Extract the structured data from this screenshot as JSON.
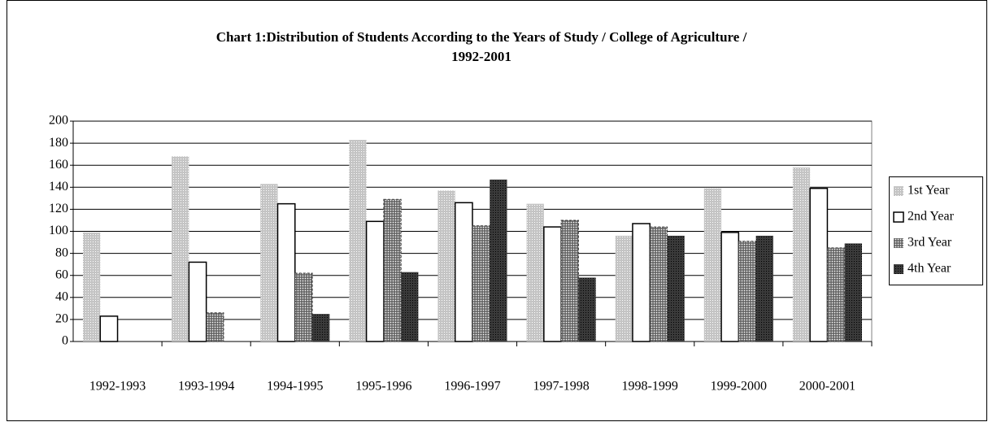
{
  "chart_data": {
    "type": "bar",
    "title": [
      "Chart 1:Distribution of Students According to the Years  of Study / College of Agriculture /",
      "1992-2001"
    ],
    "categories": [
      "1992-1993",
      "1993-1994",
      "1994-1995",
      "1995-1996",
      "1996-1997",
      "1997-1998",
      "1998-1999",
      "1999-2000",
      "2000-2001"
    ],
    "series": [
      {
        "name": "1st Year",
        "color": "#c4c4c4",
        "values": [
          99,
          168,
          143,
          183,
          137,
          125,
          96,
          139,
          158
        ]
      },
      {
        "name": "2nd Year",
        "color": "#ffffff",
        "values": [
          23,
          72,
          125,
          109,
          126,
          104,
          107,
          99,
          139
        ]
      },
      {
        "name": "3rd Year",
        "color": "#8a8a8a",
        "values": [
          0,
          26,
          62,
          129,
          105,
          110,
          104,
          91,
          85
        ]
      },
      {
        "name": "4th Year",
        "color": "#3a3a3a",
        "values": [
          0,
          0,
          25,
          63,
          147,
          58,
          96,
          96,
          89
        ]
      }
    ],
    "ylim": [
      0,
      200
    ],
    "yticks": [
      0,
      20,
      40,
      60,
      80,
      100,
      120,
      140,
      160,
      180,
      200
    ],
    "grid": true,
    "legend": "right"
  }
}
